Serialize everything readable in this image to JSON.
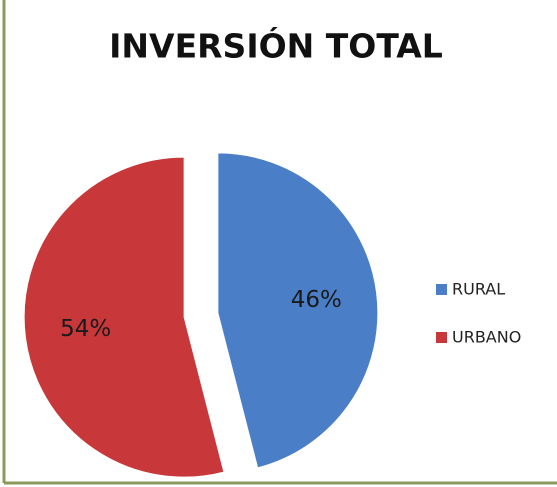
{
  "chart_data": {
    "type": "pie",
    "title": "INVERSIÓN TOTAL",
    "categories": [
      "RURAL",
      "URBANO"
    ],
    "values": [
      46,
      54
    ],
    "value_labels": [
      "46%",
      "54%"
    ],
    "colors": [
      "#4a7fc8",
      "#c8383a"
    ],
    "legend": "right"
  }
}
